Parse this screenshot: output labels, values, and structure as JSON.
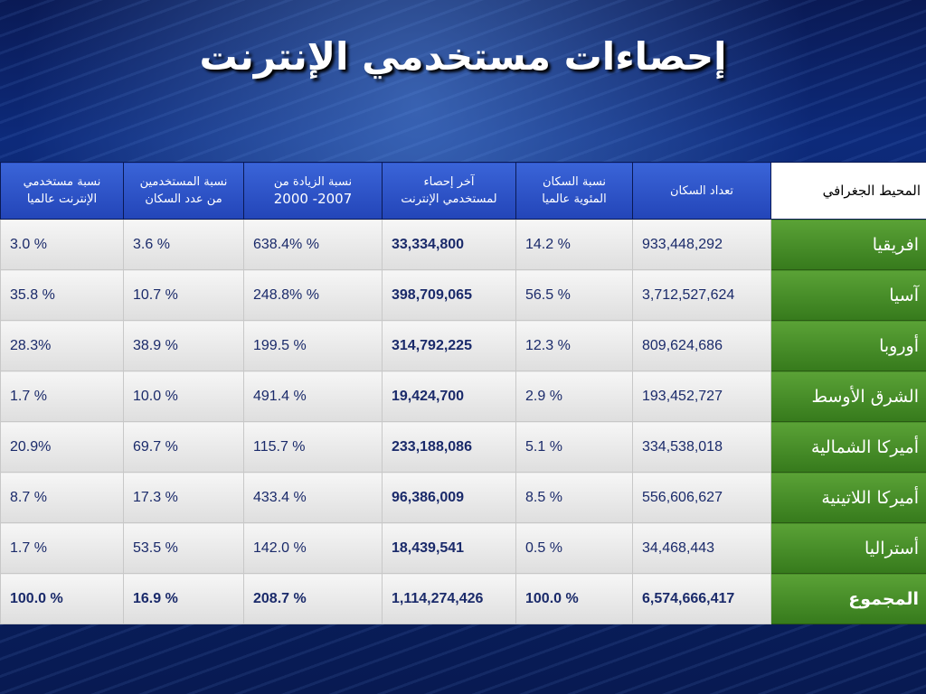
{
  "title": "إحصاءات مستخدمي الإنترنت",
  "headers": {
    "h1": [
      "نسبة مستخدمي",
      "الإنترنت عالميا"
    ],
    "h2": [
      "نسبة المستخدمين",
      "من عدد السكان"
    ],
    "h3": [
      "نسبة الزيادة من",
      "2000 -2007"
    ],
    "h4": [
      "آخر إحصاء",
      "لمستخدمي الإنترنت"
    ],
    "h5": [
      "نسبة السكان",
      "المئوية عالميا"
    ],
    "h6": "تعداد السكان",
    "h7": "المحيط الجغرافي"
  },
  "rows": [
    {
      "region": "افريقيا",
      "world_share": "3.0 %",
      "penetration": "3.6 %",
      "growth": "638.4% %",
      "users": "33,334,800",
      "pop_share": "14.2 %",
      "population": "933,448,292"
    },
    {
      "region": "آسيا",
      "world_share": "35.8 %",
      "penetration": "10.7 %",
      "growth": "248.8% %",
      "users": "398,709,065",
      "pop_share": "56.5 %",
      "population": "3,712,527,624"
    },
    {
      "region": "أوروبا",
      "world_share": "28.3%",
      "penetration": "38.9 %",
      "growth": "199.5 %",
      "users": "314,792,225",
      "pop_share": "12.3 %",
      "population": "809,624,686"
    },
    {
      "region": "الشرق الأوسط",
      "world_share": "1.7 %",
      "penetration": "10.0 %",
      "growth": "491.4 %",
      "users": "19,424,700",
      "pop_share": "2.9 %",
      "population": "193,452,727"
    },
    {
      "region": "أميركا الشمالية",
      "world_share": "20.9%",
      "penetration": "69.7 %",
      "growth": "115.7 %",
      "users": "233,188,086",
      "pop_share": "5.1 %",
      "population": "334,538,018"
    },
    {
      "region": "أميركا اللاتينية",
      "world_share": "8.7 %",
      "penetration": "17.3 %",
      "growth": "433.4 %",
      "users": "96,386,009",
      "pop_share": "8.5 %",
      "population": "556,606,627"
    },
    {
      "region": "أستراليا",
      "world_share": "1.7 %",
      "penetration": "53.5 %",
      "growth": "142.0 %",
      "users": "18,439,541",
      "pop_share": "0.5 %",
      "population": "34,468,443"
    },
    {
      "region": "المجموع",
      "world_share": "100.0 %",
      "penetration": "16.9 %",
      "growth": "208.7 %",
      "users": "1,114,274,426",
      "pop_share": "100.0 %",
      "population": "6,574,666,417"
    }
  ]
}
